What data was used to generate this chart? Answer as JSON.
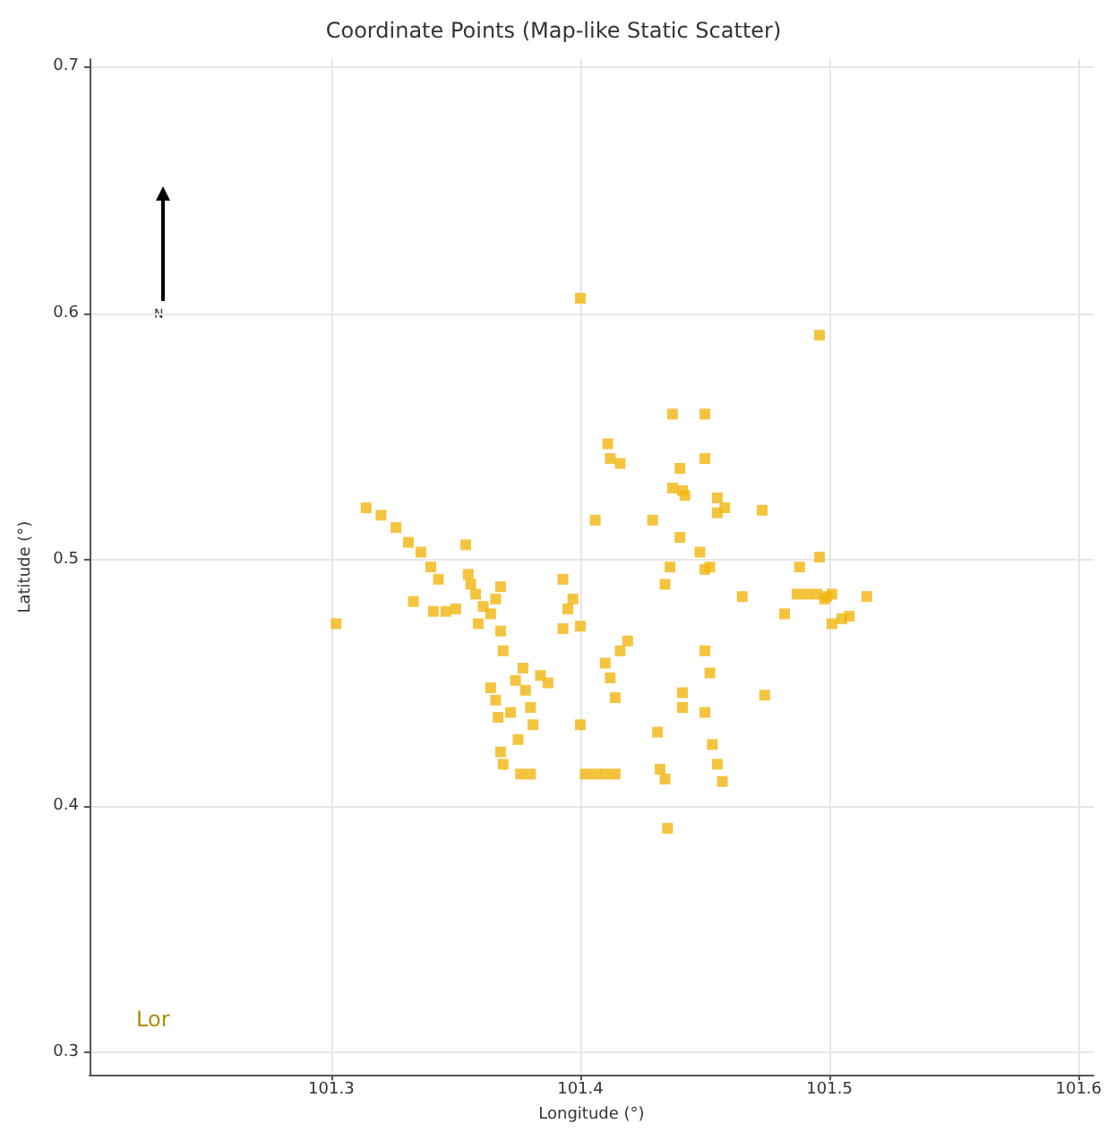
{
  "chart_data": {
    "type": "scatter",
    "title": "Coordinate Points (Map-like Static Scatter)",
    "xlabel": "Longitude (°)",
    "ylabel": "Latitude (°)",
    "annotations": [
      "N",
      "Lor"
    ],
    "xlim": [
      101.203,
      101.606
    ],
    "xticks": [
      101.3,
      101.4,
      101.5,
      101.6
    ],
    "ylim": [
      0.291,
      0.703
    ],
    "yticks": [
      0.3,
      0.4,
      0.5,
      0.6,
      0.7
    ],
    "grid": true,
    "marker": "square",
    "series": [
      {
        "color": "#f2b50f",
        "x": [
          101.302,
          101.4,
          101.496,
          101.314,
          101.32,
          101.326,
          101.331,
          101.336,
          101.34,
          101.343,
          101.333,
          101.341,
          101.346,
          101.35,
          101.354,
          101.355,
          101.356,
          101.358,
          101.359,
          101.361,
          101.364,
          101.366,
          101.368,
          101.368,
          101.369,
          101.364,
          101.366,
          101.367,
          101.368,
          101.369,
          101.372,
          101.374,
          101.377,
          101.375,
          101.378,
          101.38,
          101.381,
          101.376,
          101.38,
          101.384,
          101.387,
          101.393,
          101.393,
          101.395,
          101.397,
          101.4,
          101.4,
          101.402,
          101.406,
          101.41,
          101.414,
          101.406,
          101.411,
          101.412,
          101.416,
          101.414,
          101.412,
          101.416,
          101.419,
          101.41,
          101.429,
          101.431,
          101.432,
          101.434,
          101.435,
          101.437,
          101.45,
          101.44,
          101.437,
          101.441,
          101.442,
          101.44,
          101.448,
          101.452,
          101.45,
          101.434,
          101.436,
          101.45,
          101.455,
          101.455,
          101.458,
          101.45,
          101.452,
          101.441,
          101.441,
          101.45,
          101.453,
          101.455,
          101.457,
          101.465,
          101.473,
          101.474,
          101.482,
          101.487,
          101.488,
          101.491,
          101.495,
          101.498,
          101.496,
          101.499,
          101.501,
          101.501,
          101.505,
          101.508,
          101.515
        ],
        "values": [
          0.474,
          0.606,
          0.591,
          0.521,
          0.518,
          0.513,
          0.507,
          0.503,
          0.497,
          0.492,
          0.483,
          0.479,
          0.479,
          0.48,
          0.506,
          0.494,
          0.49,
          0.486,
          0.474,
          0.481,
          0.478,
          0.484,
          0.489,
          0.471,
          0.463,
          0.448,
          0.443,
          0.436,
          0.422,
          0.417,
          0.438,
          0.451,
          0.456,
          0.427,
          0.447,
          0.44,
          0.433,
          0.413,
          0.413,
          0.453,
          0.45,
          0.472,
          0.492,
          0.48,
          0.484,
          0.473,
          0.433,
          0.413,
          0.413,
          0.413,
          0.413,
          0.516,
          0.547,
          0.541,
          0.539,
          0.444,
          0.452,
          0.463,
          0.467,
          0.458,
          0.516,
          0.43,
          0.415,
          0.411,
          0.391,
          0.559,
          0.559,
          0.537,
          0.529,
          0.528,
          0.526,
          0.509,
          0.503,
          0.497,
          0.496,
          0.49,
          0.497,
          0.541,
          0.525,
          0.519,
          0.521,
          0.463,
          0.454,
          0.446,
          0.44,
          0.438,
          0.425,
          0.417,
          0.41,
          0.485,
          0.52,
          0.445,
          0.478,
          0.486,
          0.497,
          0.486,
          0.486,
          0.484,
          0.501,
          0.485,
          0.474,
          0.486,
          0.476,
          0.477,
          0.485
        ]
      }
    ]
  }
}
